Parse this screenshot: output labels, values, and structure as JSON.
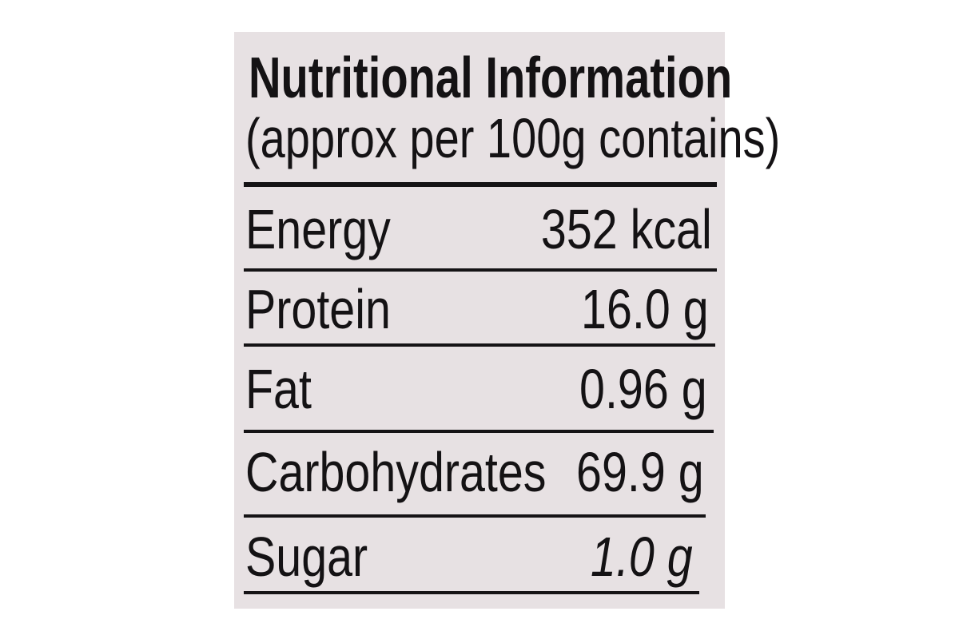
{
  "label": {
    "title": "Nutritional Information",
    "subtitle": "(approx per 100g contains)",
    "rows": [
      {
        "nutrient": "Energy",
        "value": "352 kcal"
      },
      {
        "nutrient": "Protein",
        "value": "16.0 g"
      },
      {
        "nutrient": "Fat",
        "value": "0.96 g"
      },
      {
        "nutrient": "Carbohydrates",
        "value": "69.9 g"
      },
      {
        "nutrient": "Sugar",
        "value": "1.0 g"
      }
    ]
  }
}
